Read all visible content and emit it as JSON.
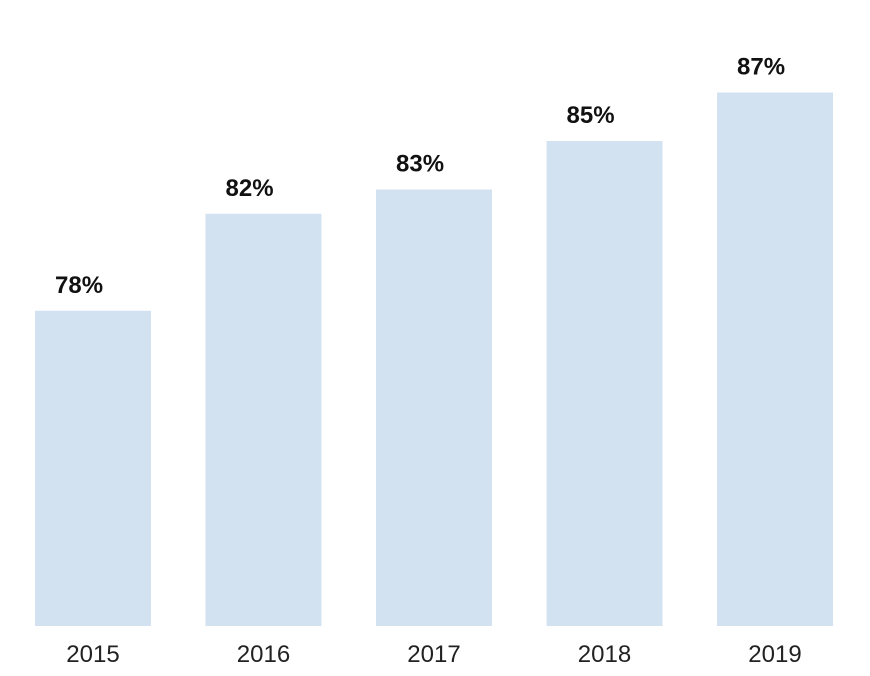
{
  "chart_data": {
    "type": "bar",
    "categories": [
      "2015",
      "2016",
      "2017",
      "2018",
      "2019"
    ],
    "values": [
      78,
      82,
      83,
      85,
      87
    ],
    "value_labels": [
      "78%",
      "82%",
      "83%",
      "85%",
      "87%"
    ],
    "title": "",
    "xlabel": "",
    "ylabel": "",
    "ylim": [
      65,
      89
    ],
    "grid": false,
    "legend": "none",
    "bar_color": "#d3e2f1"
  }
}
